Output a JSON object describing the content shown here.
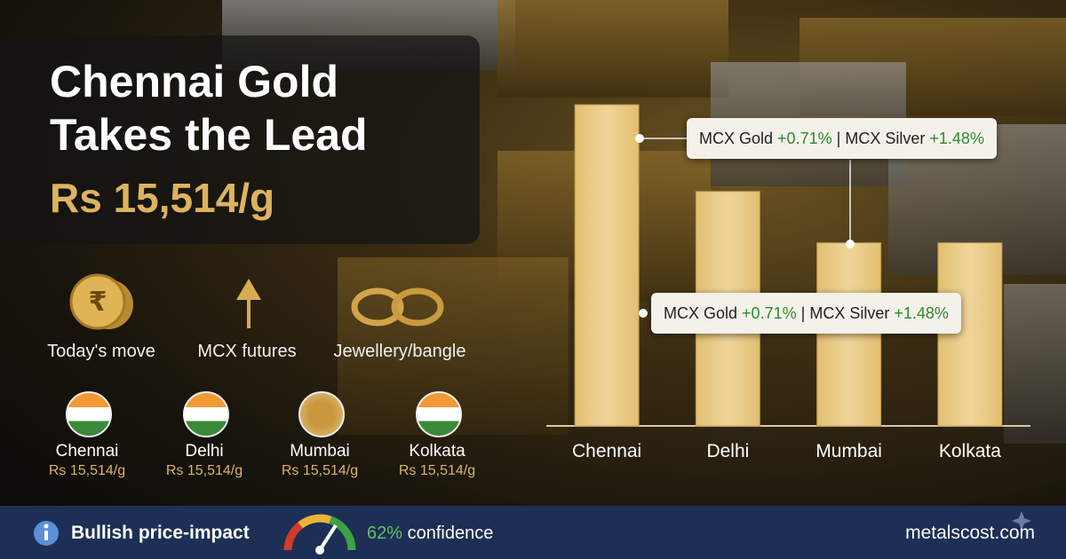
{
  "header": {
    "title_line1": "Chennai Gold",
    "title_line2": "Takes the Lead",
    "price": "Rs 15,514/g"
  },
  "features": [
    {
      "label": "Today's move"
    },
    {
      "label": "MCX futures"
    },
    {
      "label": "Jewellery/bangle"
    }
  ],
  "cities": [
    {
      "name": "Chennai",
      "price": "Rs 15,514/g"
    },
    {
      "name": "Delhi",
      "price": "Rs 15,514/g"
    },
    {
      "name": "Mumbai",
      "price": "Rs 15,514/g"
    },
    {
      "name": "Kolkata",
      "price": "Rs 15,514/g"
    }
  ],
  "chart_data": {
    "type": "bar",
    "categories": [
      "Chennai",
      "Delhi",
      "Mumbai",
      "Kolkata"
    ],
    "values": [
      100,
      73,
      57,
      57
    ],
    "color": "#e2bf72",
    "ylim": [
      0,
      100
    ]
  },
  "callouts": [
    {
      "gold_label": "MCX Gold",
      "gold_change": "+0.71%",
      "separator": "|",
      "silver_label": "MCX Silver",
      "silver_change": "+1.48%"
    },
    {
      "gold_label": "MCX Gold",
      "gold_change": "+0.71%",
      "separator": "|",
      "silver_label": "MCX Silver",
      "silver_change": "+1.48%"
    }
  ],
  "footer": {
    "impact": "Bullish price-impact",
    "confidence_value": "62%",
    "confidence_word": "confidence",
    "site": "metalscost.com"
  }
}
